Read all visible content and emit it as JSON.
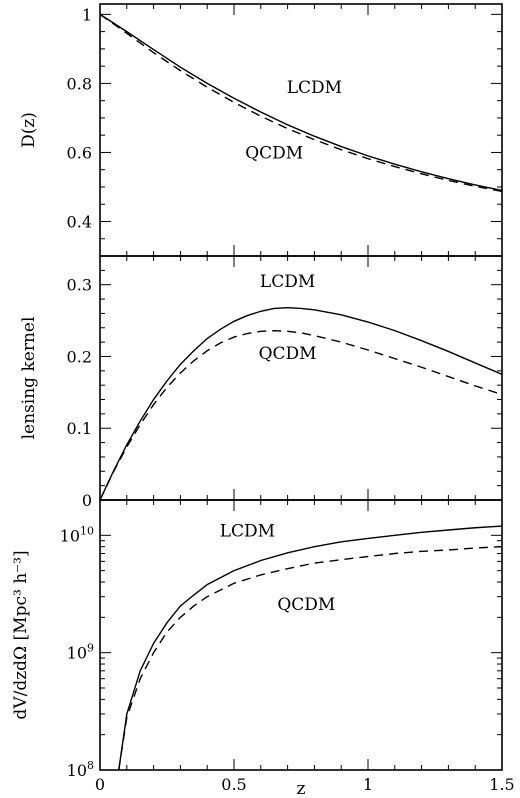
{
  "chart_data": [
    {
      "type": "line",
      "panel": "top",
      "xlabel": "",
      "ylabel": "D(z)",
      "xlim": [
        0,
        1.5
      ],
      "ylim": [
        0.3,
        1.03
      ],
      "yticks": [
        0.4,
        0.6,
        0.8,
        1
      ],
      "ytick_labels": [
        "0.4",
        "0.6",
        "0.8",
        "1"
      ],
      "series": [
        {
          "name": "LCDM",
          "style": "solid",
          "x": [
            0,
            0.1,
            0.2,
            0.3,
            0.4,
            0.5,
            0.6,
            0.7,
            0.8,
            0.9,
            1.0,
            1.1,
            1.2,
            1.3,
            1.4,
            1.5
          ],
          "y": [
            1.0,
            0.95,
            0.898,
            0.847,
            0.8,
            0.757,
            0.717,
            0.68,
            0.647,
            0.617,
            0.59,
            0.566,
            0.544,
            0.524,
            0.506,
            0.49
          ]
        },
        {
          "name": "QCDM",
          "style": "dashed",
          "x": [
            0,
            0.1,
            0.2,
            0.3,
            0.4,
            0.5,
            0.6,
            0.7,
            0.8,
            0.9,
            1.0,
            1.1,
            1.2,
            1.3,
            1.4,
            1.5
          ],
          "y": [
            1.0,
            0.945,
            0.889,
            0.837,
            0.789,
            0.745,
            0.705,
            0.669,
            0.637,
            0.608,
            0.582,
            0.559,
            0.538,
            0.519,
            0.502,
            0.487
          ]
        }
      ],
      "annotations": [
        {
          "text": "LCDM",
          "x": 0.8,
          "y": 0.79
        },
        {
          "text": "QCDM",
          "x": 0.65,
          "y": 0.6
        }
      ]
    },
    {
      "type": "line",
      "panel": "middle",
      "xlabel": "",
      "ylabel": "lensing kernel",
      "xlim": [
        0,
        1.5
      ],
      "ylim": [
        0,
        0.34
      ],
      "yticks": [
        0,
        0.1,
        0.2,
        0.3
      ],
      "ytick_labels": [
        "0",
        "0.1",
        "0.2",
        "0.3"
      ],
      "series": [
        {
          "name": "LCDM",
          "style": "solid",
          "x": [
            0,
            0.05,
            0.1,
            0.15,
            0.2,
            0.25,
            0.3,
            0.35,
            0.4,
            0.45,
            0.5,
            0.55,
            0.6,
            0.65,
            0.7,
            0.75,
            0.8,
            0.9,
            1.0,
            1.1,
            1.2,
            1.3,
            1.4,
            1.5
          ],
          "y": [
            0,
            0.04,
            0.077,
            0.11,
            0.14,
            0.166,
            0.189,
            0.208,
            0.225,
            0.238,
            0.249,
            0.257,
            0.263,
            0.267,
            0.268,
            0.267,
            0.265,
            0.258,
            0.248,
            0.236,
            0.222,
            0.207,
            0.191,
            0.175
          ]
        },
        {
          "name": "QCDM",
          "style": "dashed",
          "x": [
            0,
            0.05,
            0.1,
            0.15,
            0.2,
            0.25,
            0.3,
            0.35,
            0.4,
            0.45,
            0.5,
            0.55,
            0.6,
            0.65,
            0.7,
            0.75,
            0.8,
            0.9,
            1.0,
            1.1,
            1.2,
            1.3,
            1.4,
            1.5
          ],
          "y": [
            0,
            0.039,
            0.074,
            0.105,
            0.133,
            0.157,
            0.177,
            0.194,
            0.208,
            0.219,
            0.227,
            0.232,
            0.235,
            0.236,
            0.235,
            0.233,
            0.229,
            0.22,
            0.209,
            0.197,
            0.185,
            0.172,
            0.159,
            0.147
          ]
        }
      ],
      "annotations": [
        {
          "text": "LCDM",
          "x": 0.7,
          "y": 0.305
        },
        {
          "text": "QCDM",
          "x": 0.7,
          "y": 0.205
        }
      ]
    },
    {
      "type": "line",
      "panel": "bottom",
      "xlabel": "z",
      "ylabel": "dV/dzdΩ [Mpc³ h⁻³]",
      "xscale": "linear",
      "yscale": "log",
      "xlim": [
        0,
        1.5
      ],
      "ylim": [
        100000000,
        20000000000
      ],
      "xticks": [
        0,
        0.5,
        1,
        1.5
      ],
      "xtick_labels": [
        "0",
        "0.5",
        "1",
        "1.5"
      ],
      "yticks": [
        100000000,
        1000000000,
        10000000000
      ],
      "ytick_labels": [
        {
          "base": "10",
          "exp": "8"
        },
        {
          "base": "10",
          "exp": "9"
        },
        {
          "base": "10",
          "exp": "10"
        }
      ],
      "series": [
        {
          "name": "LCDM",
          "style": "solid",
          "x": [
            0.07,
            0.1,
            0.15,
            0.2,
            0.25,
            0.3,
            0.35,
            0.4,
            0.5,
            0.6,
            0.7,
            0.8,
            0.9,
            1.0,
            1.1,
            1.2,
            1.3,
            1.4,
            1.5
          ],
          "y": [
            100000000,
            300000000,
            700000000,
            1200000000,
            1800000000,
            2500000000,
            3100000000,
            3800000000,
            5000000000,
            6100000000,
            7100000000,
            8000000000,
            8800000000,
            9400000000,
            10000000000,
            10600000000,
            11100000000,
            11600000000,
            12000000000
          ]
        },
        {
          "name": "QCDM",
          "style": "dashed",
          "x": [
            0.07,
            0.1,
            0.15,
            0.2,
            0.25,
            0.3,
            0.35,
            0.4,
            0.5,
            0.6,
            0.7,
            0.8,
            0.9,
            1.0,
            1.1,
            1.2,
            1.3,
            1.4,
            1.5
          ],
          "y": [
            100000000,
            280000000,
            600000000,
            1000000000,
            1500000000,
            2000000000,
            2500000000,
            3000000000,
            3900000000,
            4600000000,
            5200000000,
            5800000000,
            6200000000,
            6600000000,
            7000000000,
            7300000000,
            7500000000,
            7800000000,
            8000000000
          ]
        }
      ],
      "annotations": [
        {
          "text": "LCDM",
          "x": 0.55,
          "y": 11000000000
        },
        {
          "text": "QCDM",
          "x": 0.77,
          "y": 2600000000
        }
      ]
    }
  ]
}
